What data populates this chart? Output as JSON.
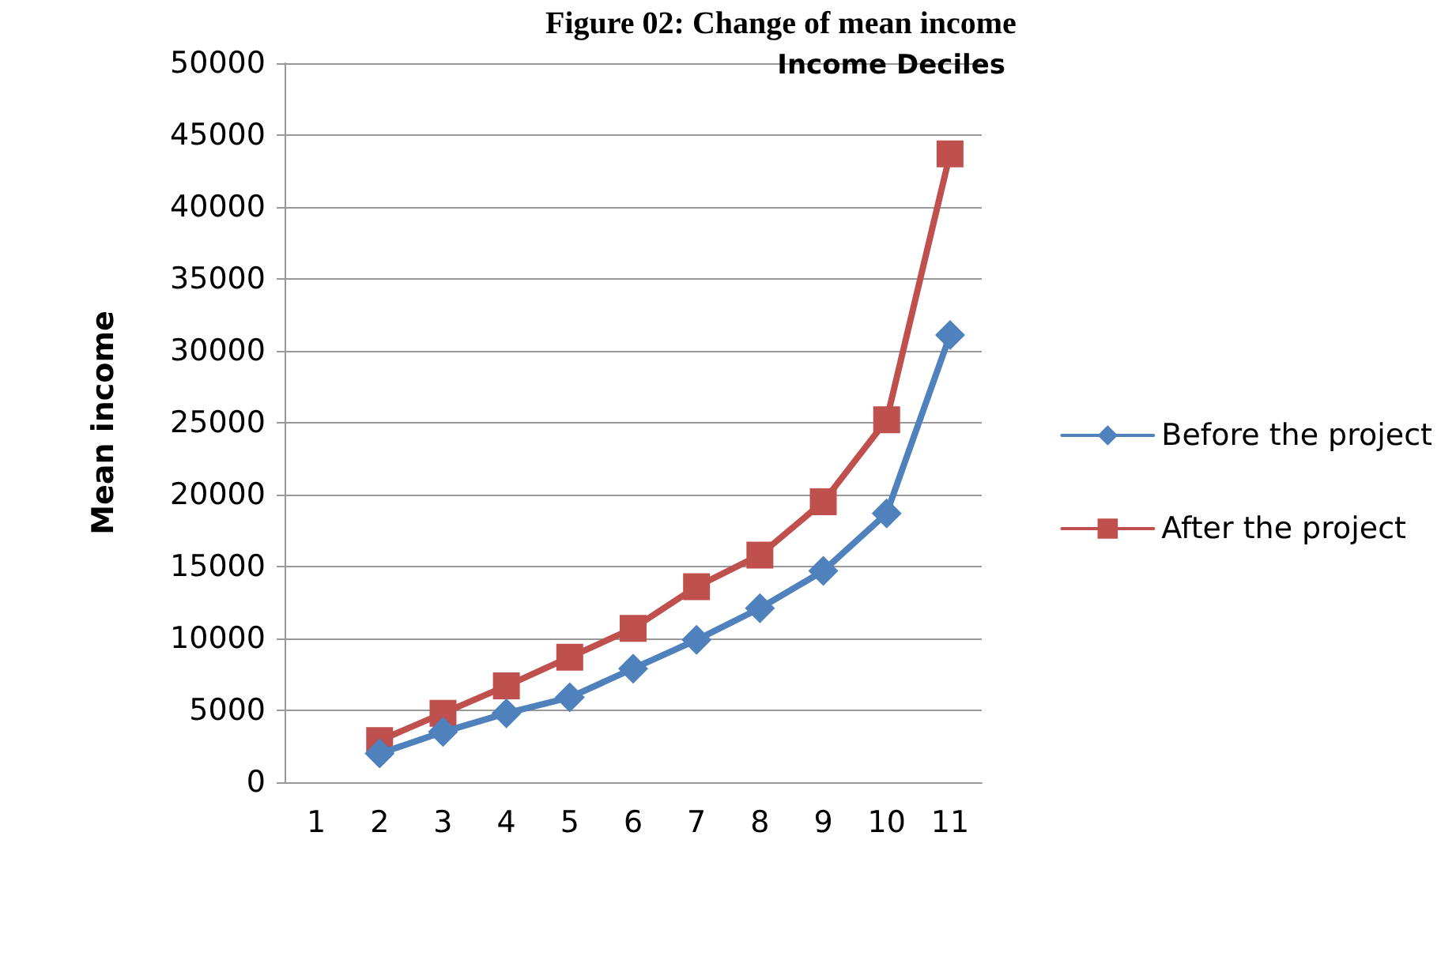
{
  "chart_data": {
    "type": "line",
    "title": "Figure 02: Change of mean income",
    "xlabel": "Income Deciles",
    "ylabel": "Mean income",
    "categories": [
      "1",
      "2",
      "3",
      "4",
      "5",
      "6",
      "7",
      "8",
      "9",
      "10",
      "11"
    ],
    "series": [
      {
        "name": "Before the project",
        "color": "#4f81bd",
        "marker": "diamond",
        "values": [
          null,
          2000,
          3500,
          4800,
          5900,
          7900,
          9900,
          12100,
          14700,
          18700,
          31100
        ]
      },
      {
        "name": "After the project",
        "color": "#c0504d",
        "marker": "square",
        "values": [
          null,
          2900,
          4800,
          6700,
          8700,
          10700,
          13600,
          15800,
          19500,
          25200,
          43700
        ]
      }
    ],
    "ylim": [
      0,
      50000
    ],
    "yticks": [
      0,
      5000,
      10000,
      15000,
      20000,
      25000,
      30000,
      35000,
      40000,
      45000,
      50000
    ],
    "grid": "y",
    "legend": "right"
  }
}
